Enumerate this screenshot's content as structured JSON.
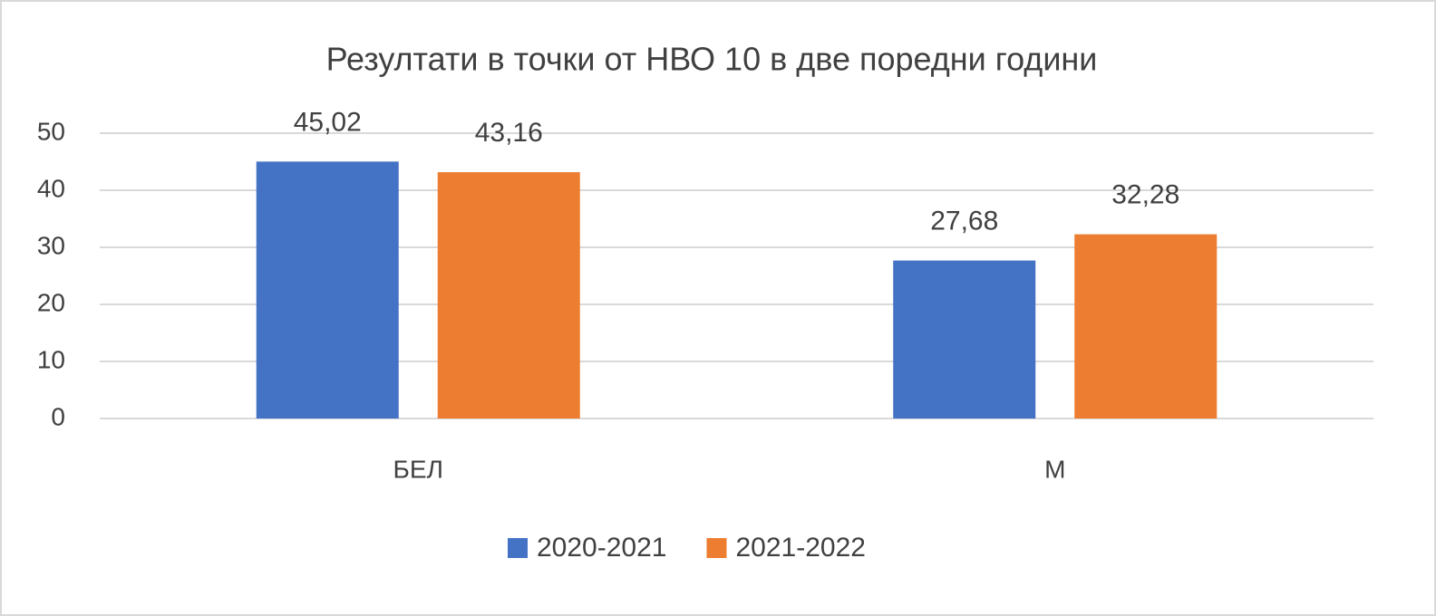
{
  "chart_data": {
    "type": "bar",
    "title": "Резултати в точки от НВО 10 в две поредни години",
    "categories": [
      "БЕЛ",
      "М"
    ],
    "series": [
      {
        "name": "2020-2021",
        "color": "#4472c4",
        "values": [
          45.02,
          27.68
        ],
        "value_labels": [
          "45,02",
          "27,68"
        ]
      },
      {
        "name": "2021-2022",
        "color": "#ed7d31",
        "values": [
          43.16,
          32.28
        ],
        "value_labels": [
          "43,16",
          "32,28"
        ]
      }
    ],
    "ylim": [
      0,
      50
    ],
    "yticks": [
      0,
      10,
      20,
      30,
      40,
      50
    ],
    "grid": true,
    "legend": "bottom"
  }
}
